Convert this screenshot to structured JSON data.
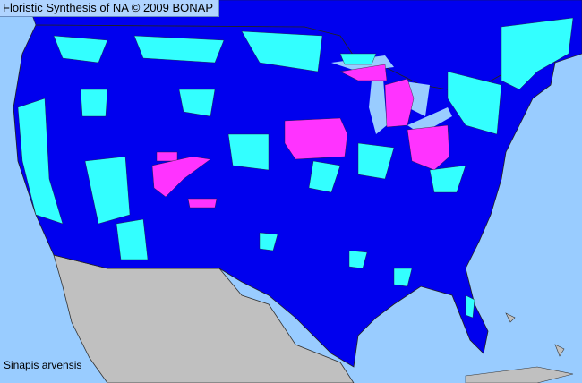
{
  "title": "Floristic Synthesis of NA © 2009 BONAP",
  "species_label": "Sinapis arvensis",
  "colors": {
    "water": "#99ccff",
    "present_native_county": "#0000ee",
    "present_state": "#00ffff",
    "noxious_or_rare": "#ff33ff",
    "outside_region": "#c0c0c0",
    "borders": "#333333"
  }
}
